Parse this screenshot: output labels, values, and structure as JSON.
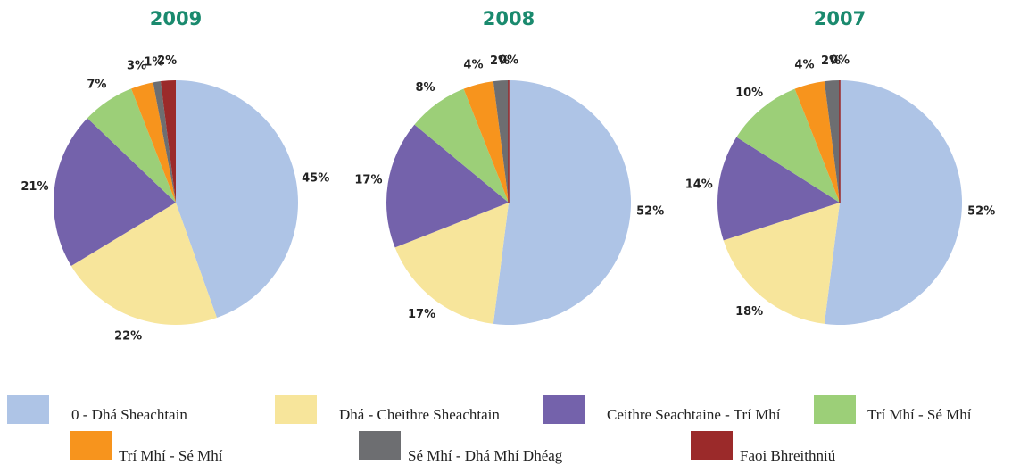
{
  "chart_data": [
    {
      "type": "pie",
      "title": "2009",
      "values": [
        45,
        22,
        21,
        7,
        3,
        1,
        2
      ]
    },
    {
      "type": "pie",
      "title": "2008",
      "values": [
        52,
        17,
        17,
        8,
        4,
        2,
        0
      ]
    },
    {
      "type": "pie",
      "title": "2007",
      "values": [
        52,
        18,
        14,
        10,
        4,
        2,
        0
      ]
    }
  ],
  "legend": {
    "names": [
      "0 - Dhá Sheachtain",
      "Dhá - Cheithre Sheachtain",
      "Ceithre Seachtaine - Trí Mhí",
      "Trí Mhí - Sé Mhí",
      "Trí Mhí - Sé Mhí",
      "Sé Mhí - Dhá Mhí Dhéag",
      "Faoi Bhreithniú"
    ],
    "colors": [
      "#aec4e6",
      "#f7e59b",
      "#7462ab",
      "#9ccf78",
      "#f7941d",
      "#6d6e71",
      "#9b2a2a"
    ]
  }
}
